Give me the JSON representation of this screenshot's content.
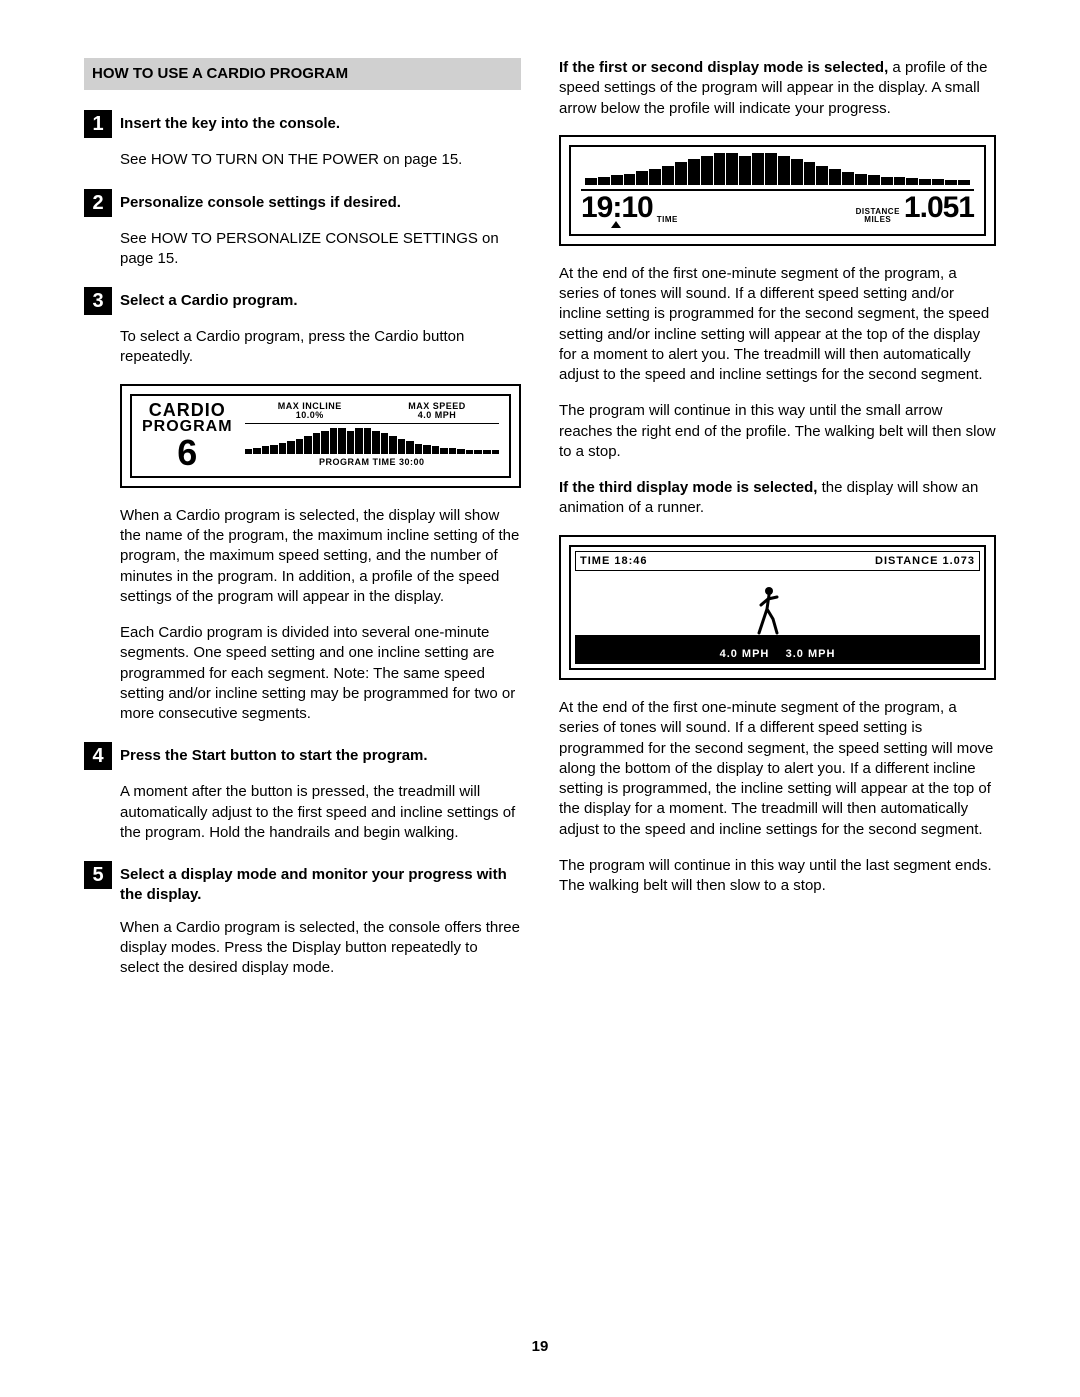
{
  "page_number": "19",
  "section_header": "HOW TO USE A CARDIO PROGRAM",
  "steps": [
    {
      "n": "1",
      "title": "Insert the key into the console.",
      "body": [
        "See HOW TO TURN ON THE POWER on page 15."
      ]
    },
    {
      "n": "2",
      "title": "Personalize console settings if desired.",
      "body": [
        "See HOW TO PERSONALIZE CONSOLE SETTINGS on page 15."
      ]
    },
    {
      "n": "3",
      "title": "Select a Cardio program.",
      "body_before": [
        "To select a Cardio program, press the Cardio button repeatedly."
      ],
      "body_after": [
        "When a Cardio program is selected, the display will show the name of the program, the maximum incline setting of the program, the maximum speed setting, and the number of minutes in the program. In addition, a profile of the speed settings of the program will appear in the display.",
        "Each Cardio program is divided into several one-minute segments. One speed setting and one incline setting are programmed for each segment. Note: The same speed setting and/or incline setting may be programmed for two or more consecutive segments."
      ]
    },
    {
      "n": "4",
      "title": "Press the Start button to start the program.",
      "body": [
        "A moment after the button is pressed, the treadmill will automatically adjust to the first speed and incline settings of the program. Hold the handrails and begin walking."
      ]
    },
    {
      "n": "5",
      "title": "Select a display mode and monitor your progress with the display.",
      "body": [
        "When a Cardio program is selected, the console offers three display modes. Press the Display button repeatedly to select the desired display mode."
      ]
    }
  ],
  "right_col": {
    "p1_bold": "If the first or second display mode is selected,",
    "p1_rest": " a profile of the speed settings of the program will appear in the display. A small arrow below the profile will indicate your progress.",
    "p2": "At the end of the first one-minute segment of the program, a series of tones will sound. If a different speed setting and/or incline setting is programmed for the second segment, the speed setting and/or incline setting will appear at the top of the display for a moment to alert you. The treadmill will then automatically adjust to the speed and incline settings for the second segment.",
    "p3": "The program will continue in this way until the small arrow reaches the right end of the profile. The walking belt will then slow to a stop.",
    "p4_bold": "If the third display mode is selected,",
    "p4_rest": " the display will show an animation of a runner.",
    "p5": "At the end of the first one-minute segment of the program, a series of tones will sound. If a different speed setting is programmed for the second segment, the speed setting will move along the bottom of the display to alert you. If a different incline setting is programmed, the incline setting will appear at the top of the display for a moment. The treadmill will then automatically adjust to the speed and incline settings for the second segment.",
    "p6": "The program will continue in this way until the last segment ends. The walking belt will then slow to a stop."
  },
  "cardio_display": {
    "title1": "CARDIO",
    "title2": "PROGRAM",
    "number": "6",
    "max_incline_label": "MAX INCLINE",
    "max_incline_val": "10.0%",
    "max_speed_label": "MAX SPEED",
    "max_speed_val": "4.0 MPH",
    "program_time": "PROGRAM TIME  30:00",
    "profile_heights_pct": [
      20,
      25,
      30,
      35,
      42,
      50,
      60,
      70,
      80,
      90,
      100,
      100,
      90,
      100,
      100,
      90,
      80,
      70,
      60,
      50,
      40,
      35,
      30,
      25,
      25,
      20,
      18,
      18,
      16,
      16
    ]
  },
  "time_dist_display": {
    "time_val": "19:10",
    "time_label": "TIME",
    "dist_label_top": "DISTANCE",
    "dist_label_bot": "MILES",
    "dist_val": "1.051",
    "profile_heights_pct": [
      20,
      25,
      30,
      35,
      42,
      50,
      60,
      70,
      80,
      90,
      100,
      100,
      90,
      100,
      100,
      90,
      80,
      70,
      60,
      50,
      40,
      35,
      30,
      25,
      25,
      20,
      18,
      18,
      16,
      16
    ]
  },
  "runner_display": {
    "time_label": "TIME  18:46",
    "dist_label": "DISTANCE  1.073",
    "speed1": "4.0 MPH",
    "speed2": "3.0 MPH"
  },
  "colors": {
    "header_bg": "#d0d0d0",
    "badge_bg": "#000000",
    "badge_fg": "#ffffff",
    "text": "#000000",
    "page_bg": "#ffffff"
  }
}
